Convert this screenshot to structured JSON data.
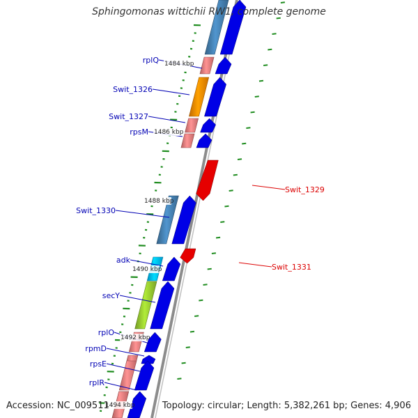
{
  "title": "Sphingomonas wittichii RW1, complete genome",
  "accession": "Accession: NC_009511",
  "summary": "Topology: circular; Length: 5,382,261 bp; Genes: 4,906",
  "colors": {
    "backbone": "#8c8c8c",
    "cds_forward": "#0000e6",
    "cds_reverse": "#e60000",
    "label_forward": "#0000b4",
    "label_reverse": "#dc0000",
    "tick": "#1e8c1e"
  },
  "kbp_marks": [
    {
      "label": "1484 kbp"
    },
    {
      "label": "1486 kbp"
    },
    {
      "label": "1488 kbp"
    },
    {
      "label": "1490 kbp"
    },
    {
      "label": "1492 kbp"
    },
    {
      "label": "1494 kbp"
    }
  ],
  "genes": [
    {
      "name": "",
      "strand": "+",
      "color": "#4682b4"
    },
    {
      "name": "rplQ",
      "strand": "+",
      "color": "#f08080"
    },
    {
      "name": "Swit_1326",
      "strand": "+",
      "color": "#ff8c00"
    },
    {
      "name": "Swit_1327",
      "strand": "+",
      "color": "#f08080"
    },
    {
      "name": "rpsM",
      "strand": "+",
      "color": "#f08080"
    },
    {
      "name": "Swit_1329",
      "strand": "-",
      "color": "#e60000"
    },
    {
      "name": "Swit_1330",
      "strand": "+",
      "color": "#4682b4"
    },
    {
      "name": "Swit_1331",
      "strand": "-",
      "color": "#e60000"
    },
    {
      "name": "adk",
      "strand": "+",
      "color": "#00bfff"
    },
    {
      "name": "secY",
      "strand": "+",
      "color": "#9acd32"
    },
    {
      "name": "rplO",
      "strand": "+",
      "color": "#f08080"
    },
    {
      "name": "rpmD",
      "strand": "+",
      "color": "#f08080"
    },
    {
      "name": "rpsE",
      "strand": "+",
      "color": "#f08080"
    },
    {
      "name": "rplR",
      "strand": "+",
      "color": "#f08080"
    },
    {
      "name": "",
      "strand": "+",
      "color": "#f08080"
    }
  ]
}
